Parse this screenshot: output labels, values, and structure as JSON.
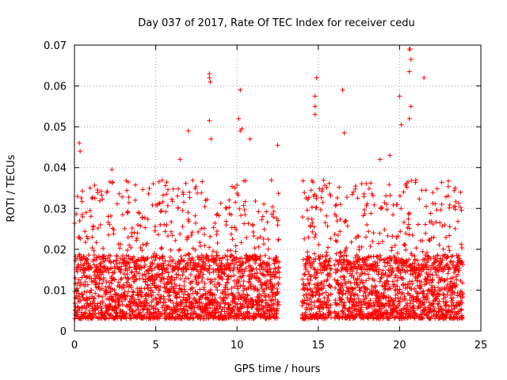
{
  "chart_data": {
    "type": "scatter",
    "title": "Day 037 of 2017, Rate Of TEC Index for receiver cedu",
    "xlabel": "GPS time / hours",
    "ylabel": "ROTI / TECUs",
    "xlim": [
      0,
      25
    ],
    "ylim": [
      0,
      0.07
    ],
    "xticks": [
      0,
      5,
      10,
      15,
      20,
      25
    ],
    "xtick_labels": [
      "0",
      "5",
      "10",
      "15",
      "20",
      "25"
    ],
    "yticks": [
      0,
      0.01,
      0.02,
      0.03,
      0.04,
      0.05,
      0.06,
      0.07
    ],
    "ytick_labels": [
      "0",
      "0.01",
      "0.02",
      "0.03",
      "0.04",
      "0.05",
      "0.06",
      "0.07"
    ],
    "grid": true,
    "marker": "plus",
    "color": "#ff0000",
    "coverage_hours": [
      [
        0.0,
        12.6
      ],
      [
        14.0,
        15.8
      ],
      [
        16.0,
        23.9
      ]
    ],
    "typical_range": [
      0.003,
      0.015
    ],
    "notable_points": [
      {
        "x": 0.3,
        "y": 0.046
      },
      {
        "x": 0.35,
        "y": 0.044
      },
      {
        "x": 2.3,
        "y": 0.0395
      },
      {
        "x": 6.5,
        "y": 0.042
      },
      {
        "x": 7.0,
        "y": 0.049
      },
      {
        "x": 8.3,
        "y": 0.063
      },
      {
        "x": 8.3,
        "y": 0.062
      },
      {
        "x": 8.35,
        "y": 0.061
      },
      {
        "x": 8.3,
        "y": 0.0515
      },
      {
        "x": 8.4,
        "y": 0.047
      },
      {
        "x": 10.1,
        "y": 0.052
      },
      {
        "x": 10.2,
        "y": 0.059
      },
      {
        "x": 10.2,
        "y": 0.049
      },
      {
        "x": 10.3,
        "y": 0.0495
      },
      {
        "x": 10.8,
        "y": 0.047
      },
      {
        "x": 12.5,
        "y": 0.0455
      },
      {
        "x": 14.9,
        "y": 0.062
      },
      {
        "x": 14.8,
        "y": 0.0575
      },
      {
        "x": 14.8,
        "y": 0.055
      },
      {
        "x": 14.8,
        "y": 0.053
      },
      {
        "x": 16.5,
        "y": 0.059
      },
      {
        "x": 16.6,
        "y": 0.0485
      },
      {
        "x": 20.0,
        "y": 0.0575
      },
      {
        "x": 20.1,
        "y": 0.0505
      },
      {
        "x": 20.6,
        "y": 0.069
      },
      {
        "x": 20.65,
        "y": 0.069
      },
      {
        "x": 20.7,
        "y": 0.0665
      },
      {
        "x": 20.6,
        "y": 0.0635
      },
      {
        "x": 20.7,
        "y": 0.055
      },
      {
        "x": 20.6,
        "y": 0.052
      },
      {
        "x": 21.5,
        "y": 0.062
      },
      {
        "x": 19.4,
        "y": 0.043
      },
      {
        "x": 18.8,
        "y": 0.042
      }
    ]
  }
}
